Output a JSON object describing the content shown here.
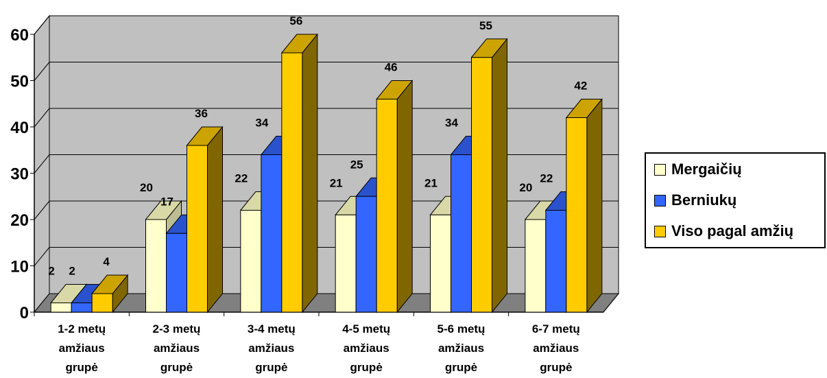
{
  "chart_data": {
    "type": "bar",
    "categories": [
      [
        "1-2 metų",
        "amžiaus",
        "grupė"
      ],
      [
        "2-3 metų",
        "amžiaus",
        "grupė"
      ],
      [
        "3-4 metų",
        "amžiaus",
        "grupė"
      ],
      [
        "4-5 metų",
        "amžiaus",
        "grupė"
      ],
      [
        "5-6 metų",
        "amžiaus",
        "grupė"
      ],
      [
        "6-7 metų",
        "amžiaus",
        "grupė"
      ]
    ],
    "series": [
      {
        "name": "Mergaičių",
        "values": [
          2,
          20,
          22,
          21,
          21,
          20
        ],
        "color": "#FFFFCC",
        "top_color": "#D9D9A8",
        "side_color": "#BDBD94"
      },
      {
        "name": "Berniukų",
        "values": [
          2,
          17,
          34,
          25,
          34,
          22
        ],
        "color": "#3366FF",
        "top_color": "#2A52CC",
        "side_color": "#1F3FA3"
      },
      {
        "name": "Viso pagal amžių",
        "values": [
          4,
          36,
          56,
          46,
          55,
          42
        ],
        "color": "#FFCC00",
        "top_color": "#CCA300",
        "side_color": "#7F6600"
      }
    ],
    "ylim": [
      0,
      60
    ],
    "yticks": [
      "0",
      "10",
      "20",
      "30",
      "40",
      "50",
      "60"
    ],
    "grid": true,
    "legend_position": "right",
    "title": "",
    "xlabel": "",
    "ylabel": ""
  }
}
